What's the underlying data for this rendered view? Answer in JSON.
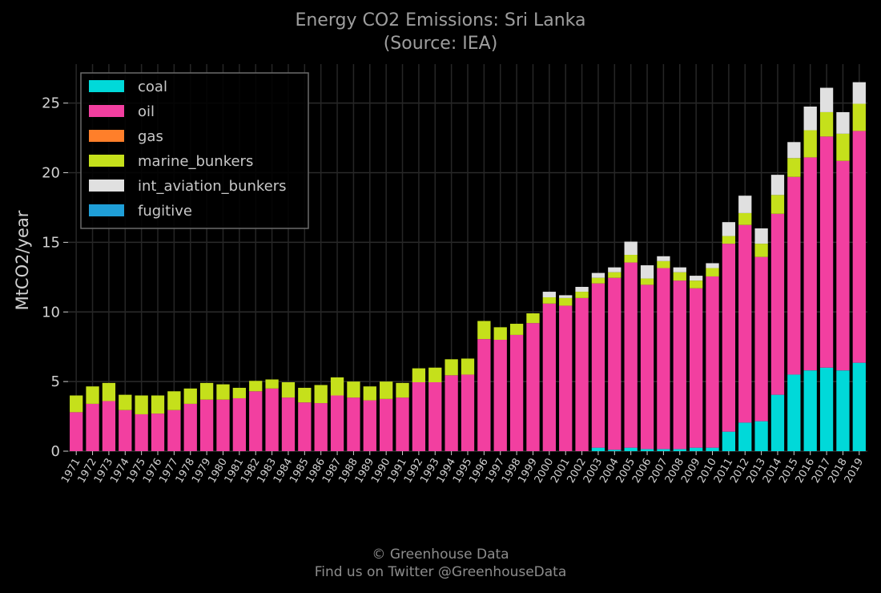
{
  "title": "Energy CO2 Emissions: Sri Lanka",
  "subtitle": "(Source: IEA)",
  "footer": {
    "line1": "© Greenhouse Data",
    "line2": "Find us on Twitter @GreenhouseData"
  },
  "chart_data": {
    "type": "bar",
    "stacked": true,
    "title": "Energy CO2 Emissions: Sri Lanka",
    "subtitle": "(Source: IEA)",
    "xlabel": "",
    "ylabel": "MtCO2/year",
    "ylim": [
      0,
      27.8
    ],
    "yticks": [
      0,
      5,
      10,
      15,
      20,
      25
    ],
    "grid": true,
    "legend_position": "top-left",
    "categories": [
      "1971",
      "1972",
      "1973",
      "1974",
      "1975",
      "1976",
      "1977",
      "1978",
      "1979",
      "1980",
      "1981",
      "1982",
      "1983",
      "1984",
      "1985",
      "1986",
      "1987",
      "1988",
      "1989",
      "1990",
      "1991",
      "1992",
      "1993",
      "1994",
      "1995",
      "1996",
      "1997",
      "1998",
      "1999",
      "2000",
      "2001",
      "2002",
      "2003",
      "2004",
      "2005",
      "2006",
      "2007",
      "2008",
      "2009",
      "2010",
      "2011",
      "2012",
      "2013",
      "2014",
      "2015",
      "2016",
      "2017",
      "2018",
      "2019"
    ],
    "series": [
      {
        "name": "coal",
        "color": "#00d9d9",
        "values": [
          0,
          0,
          0,
          0,
          0,
          0,
          0,
          0,
          0,
          0,
          0,
          0,
          0,
          0,
          0,
          0,
          0,
          0,
          0,
          0,
          0,
          0,
          0,
          0,
          0,
          0,
          0,
          0,
          0,
          0,
          0,
          0,
          0.25,
          0.1,
          0.25,
          0.15,
          0.15,
          0.15,
          0.25,
          0.25,
          1.4,
          2.05,
          2.15,
          4.05,
          5.5,
          5.8,
          6.0,
          5.8,
          6.35
        ]
      },
      {
        "name": "oil",
        "color": "#f23fa0",
        "values": [
          2.8,
          3.4,
          3.6,
          2.95,
          2.65,
          2.7,
          2.95,
          3.4,
          3.7,
          3.7,
          3.8,
          4.3,
          4.5,
          3.85,
          3.5,
          3.45,
          4.0,
          3.85,
          3.65,
          3.75,
          3.85,
          4.95,
          4.95,
          5.45,
          5.5,
          8.05,
          8.0,
          8.35,
          9.2,
          10.6,
          10.45,
          11.0,
          11.8,
          12.35,
          13.3,
          11.8,
          13.0,
          12.1,
          11.45,
          12.3,
          13.5,
          14.2,
          11.8,
          13.0,
          14.2,
          15.3,
          16.6,
          15.05,
          16.65
        ]
      },
      {
        "name": "gas",
        "color": "#ff7f2a",
        "values": [
          0,
          0,
          0,
          0,
          0,
          0,
          0,
          0,
          0,
          0,
          0,
          0,
          0,
          0,
          0,
          0,
          0,
          0,
          0,
          0,
          0,
          0,
          0,
          0,
          0,
          0,
          0,
          0,
          0,
          0,
          0,
          0,
          0,
          0,
          0,
          0,
          0,
          0,
          0,
          0,
          0,
          0,
          0,
          0,
          0,
          0,
          0,
          0,
          0
        ]
      },
      {
        "name": "marine_bunkers",
        "color": "#c5e01b",
        "values": [
          1.2,
          1.25,
          1.3,
          1.1,
          1.35,
          1.3,
          1.35,
          1.1,
          1.2,
          1.1,
          0.75,
          0.75,
          0.65,
          1.1,
          1.05,
          1.3,
          1.3,
          1.15,
          1.0,
          1.25,
          1.05,
          1.0,
          1.05,
          1.15,
          1.15,
          1.3,
          0.9,
          0.8,
          0.7,
          0.45,
          0.55,
          0.45,
          0.4,
          0.4,
          0.55,
          0.45,
          0.5,
          0.6,
          0.55,
          0.6,
          0.55,
          0.85,
          0.95,
          1.35,
          1.35,
          1.95,
          1.75,
          1.95,
          1.95
        ]
      },
      {
        "name": "int_aviation_bunkers",
        "color": "#e0e0e0",
        "values": [
          0,
          0,
          0,
          0,
          0,
          0,
          0,
          0,
          0,
          0,
          0,
          0,
          0,
          0,
          0,
          0,
          0,
          0,
          0,
          0,
          0,
          0,
          0,
          0,
          0,
          0,
          0,
          0,
          0,
          0.4,
          0.2,
          0.35,
          0.35,
          0.35,
          0.95,
          0.95,
          0.35,
          0.35,
          0.35,
          0.35,
          1.0,
          1.25,
          1.1,
          1.45,
          1.15,
          1.7,
          1.75,
          1.55,
          1.55
        ]
      },
      {
        "name": "fugitive",
        "color": "#1f9fd8",
        "values": [
          0,
          0,
          0,
          0,
          0,
          0,
          0,
          0,
          0,
          0,
          0,
          0,
          0,
          0,
          0,
          0,
          0,
          0,
          0,
          0,
          0,
          0,
          0,
          0,
          0,
          0,
          0,
          0,
          0,
          0,
          0,
          0,
          0,
          0,
          0,
          0,
          0,
          0,
          0,
          0,
          0,
          0,
          0,
          0,
          0,
          0,
          0,
          0,
          0
        ]
      }
    ]
  }
}
